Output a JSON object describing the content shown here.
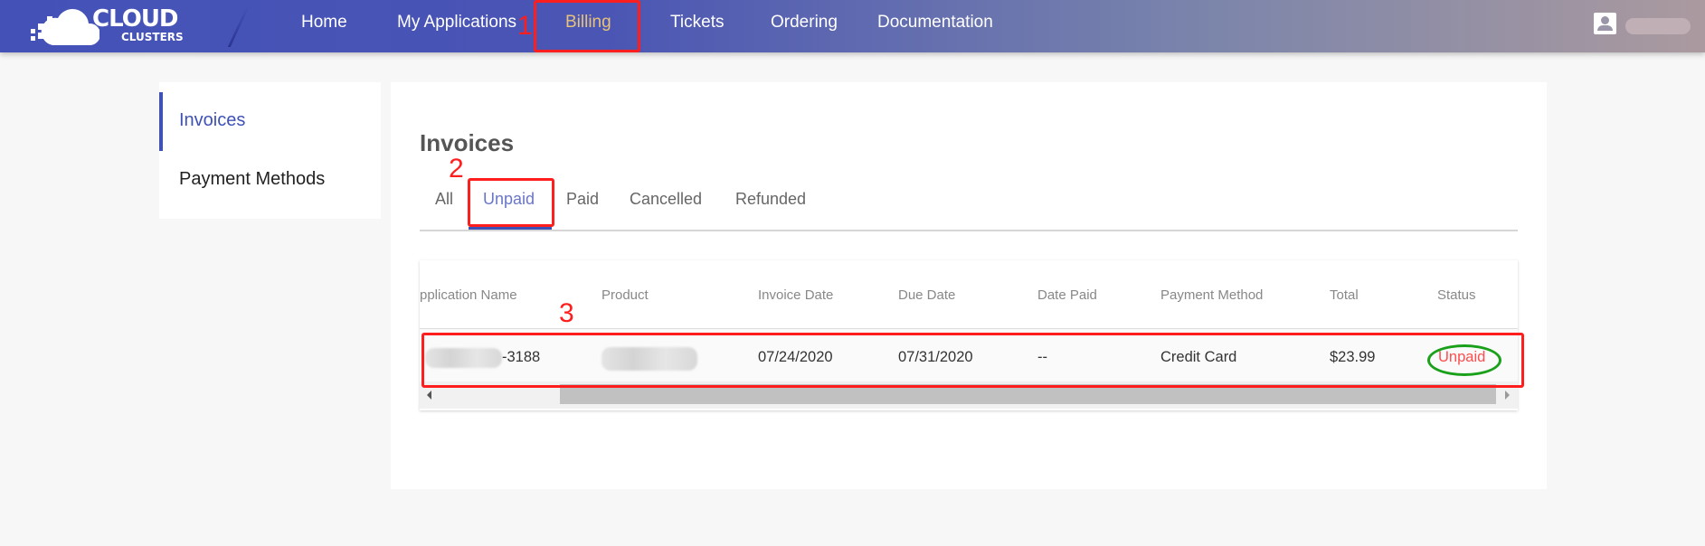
{
  "header": {
    "logo": {
      "line1": "CLOUD",
      "line2": "CLUSTERS"
    },
    "nav": [
      {
        "label": "Home"
      },
      {
        "label": "My Applications"
      },
      {
        "label": "Billing",
        "active": true
      },
      {
        "label": "Tickets"
      },
      {
        "label": "Ordering"
      },
      {
        "label": "Documentation"
      }
    ],
    "user_icon": "account-icon"
  },
  "sidebar": {
    "items": [
      {
        "label": "Invoices",
        "active": true
      },
      {
        "label": "Payment Methods"
      }
    ]
  },
  "main": {
    "title": "Invoices",
    "tabs": [
      {
        "label": "All"
      },
      {
        "label": "Unpaid",
        "active": true
      },
      {
        "label": "Paid"
      },
      {
        "label": "Cancelled"
      },
      {
        "label": "Refunded"
      }
    ],
    "table": {
      "columns": [
        "pplication Name",
        "Product",
        "Invoice Date",
        "Due Date",
        "Date Paid",
        "Payment Method",
        "Total",
        "Status"
      ],
      "rows": [
        {
          "application_name": "-3188",
          "product": "",
          "invoice_date": "07/24/2020",
          "due_date": "07/31/2020",
          "date_paid": "--",
          "payment_method": "Credit Card",
          "total": "$23.99",
          "status": "Unpaid"
        }
      ]
    }
  },
  "annotations": {
    "step1": "1",
    "step2": "2",
    "step3": "3"
  },
  "colors": {
    "accent": "#3f51b5",
    "active_nav": "#e6c27a",
    "status_unpaid": "#ff4d4f",
    "annotation_red": "#ff1e1e",
    "annotation_green": "#1aa01a"
  }
}
